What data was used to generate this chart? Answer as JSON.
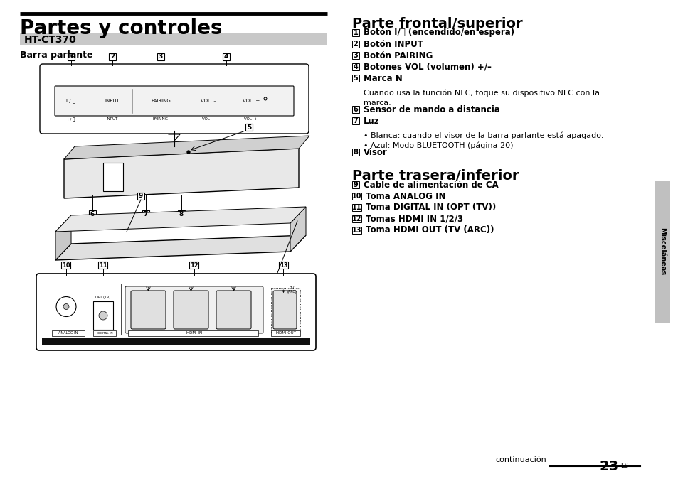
{
  "title": "Partes y controles",
  "subtitle": "HT-CT370",
  "section1": "Barra parlante",
  "right_title1": "Parte frontal/superior",
  "right_title2": "Parte trasera/inferior",
  "item_data_front": [
    [
      "1",
      "Botón I/⏻ (encendido/en espera)",
      true,
      null
    ],
    [
      "2",
      "Botón INPUT",
      true,
      null
    ],
    [
      "3",
      "Botón PAIRING",
      true,
      null
    ],
    [
      "4",
      "Botones VOL (volumen) +/–",
      true,
      null
    ],
    [
      "5",
      "Marca N",
      true,
      "Cuando usa la función NFC, toque su dispositivo NFC con la\nmarca."
    ],
    [
      "6",
      "Sensor de mando a distancia",
      true,
      null
    ],
    [
      "7",
      "Luz",
      true,
      "• Blanca: cuando el visor de la barra parlante está apagado.\n• Azul: Modo BLUETOOTH (página 20)"
    ],
    [
      "8",
      "Visor",
      true,
      null
    ]
  ],
  "item_data_rear": [
    [
      "9",
      "Cable de alimentación de CA",
      true,
      null
    ],
    [
      "10",
      "Toma ANALOG IN",
      true,
      null
    ],
    [
      "11",
      "Toma DIGITAL IN (OPT (TV))",
      true,
      null
    ],
    [
      "12",
      "Tomas HDMI IN 1/2/3",
      true,
      null
    ],
    [
      "13",
      "Toma HDMI OUT (TV (ARC))",
      true,
      null
    ]
  ],
  "side_label": "Misceláneas",
  "footer_text": "continuación",
  "page_number": "23",
  "page_super": "ES",
  "bg_color": "#ffffff",
  "subtitle_bg": "#c8c8c8"
}
